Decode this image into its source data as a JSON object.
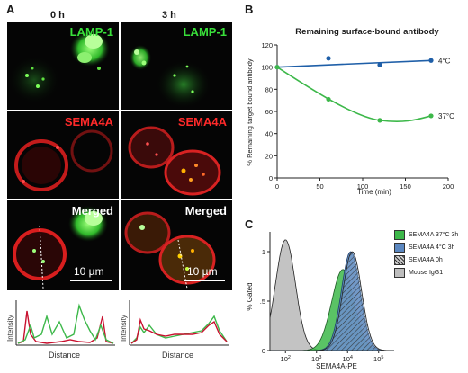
{
  "panel_a": {
    "letter": "A",
    "columns": [
      "0 h",
      "3 h"
    ],
    "rows": [
      {
        "label": "LAMP-1",
        "color": "#39e03a"
      },
      {
        "label": "SEMA4A",
        "color": "#ff2a2a"
      },
      {
        "label": "Merged",
        "color": "#ffffff"
      }
    ],
    "scale_bar": "10 µm",
    "profile_xlabel": "Distance",
    "profile_ylabel": "Intensity"
  },
  "panel_b": {
    "letter": "B",
    "chart_data": {
      "type": "line",
      "title": "Remaining surface-bound antibody",
      "xlabel": "Time (min)",
      "ylabel": "% Remaining target bound antibody",
      "xlim": [
        0,
        200
      ],
      "ylim": [
        0,
        120
      ],
      "xticks": [
        0,
        50,
        100,
        150,
        200
      ],
      "yticks": [
        0,
        20,
        40,
        60,
        80,
        100,
        120
      ],
      "series": [
        {
          "name": "4°C",
          "color": "#1f5fa8",
          "x": [
            0,
            60,
            120,
            180
          ],
          "y": [
            100,
            108,
            102,
            106
          ]
        },
        {
          "name": "37°C",
          "color": "#3db84a",
          "x": [
            0,
            60,
            120,
            180
          ],
          "y": [
            100,
            71,
            52,
            56
          ]
        }
      ]
    }
  },
  "panel_c": {
    "letter": "C",
    "chart_data": {
      "type": "area",
      "xlabel": "SEMA4A-PE",
      "ylabel": "% Gated",
      "xticks": [
        "10^2",
        "10^3",
        "10^4",
        "10^5"
      ],
      "yticks": [
        "0",
        ".5",
        "1"
      ],
      "legend": [
        {
          "name": "SEMA4A 37°C 3h",
          "color": "#3db84a"
        },
        {
          "name": "SEMA4A 4°C 3h",
          "color": "#5b87c0"
        },
        {
          "name": "SEMA4A 0h",
          "color": "#555555"
        },
        {
          "name": "Mouse IgG1",
          "color": "#bdbdbd"
        }
      ],
      "series": [
        {
          "name": "Mouse IgG1",
          "peak_log10": 2.0,
          "height": 1.12
        },
        {
          "name": "SEMA4A 37°C 3h",
          "peak_log10": 3.85,
          "height": 0.82
        },
        {
          "name": "SEMA4A 4°C 3h",
          "peak_log10": 4.1,
          "height": 1.0
        },
        {
          "name": "SEMA4A 0h",
          "peak_log10": 4.15,
          "height": 1.0
        }
      ]
    }
  }
}
